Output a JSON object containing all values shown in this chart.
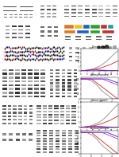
{
  "bg": "#ffffff",
  "panel_bg": "#f5f5f5",
  "band_colors": [
    "#1a1a1a",
    "#333333",
    "#555555",
    "#777777"
  ],
  "domain_colors": [
    "#e07820",
    "#f0c020",
    "#2060c0",
    "#30a030",
    "#c03030",
    "#20a0a0"
  ],
  "survival1": {
    "title": "Tumor growth",
    "lines": [
      {
        "color": "#888888",
        "x": [
          0,
          3,
          6,
          9,
          12,
          15,
          18,
          21,
          24,
          27,
          30
        ],
        "y": [
          0,
          0.05,
          0.15,
          0.35,
          0.65,
          1.0,
          1.5,
          2.2,
          3.0,
          3.8,
          4.5
        ]
      },
      {
        "color": "#cc2222",
        "x": [
          0,
          3,
          6,
          9,
          12,
          15,
          18,
          21,
          24,
          27,
          30
        ],
        "y": [
          0,
          0.04,
          0.1,
          0.2,
          0.35,
          0.55,
          0.8,
          1.1,
          1.4,
          1.8,
          2.2
        ]
      },
      {
        "color": "#2222cc",
        "x": [
          0,
          3,
          6,
          9,
          12,
          15,
          18,
          21,
          24,
          27,
          30
        ],
        "y": [
          0,
          0.03,
          0.08,
          0.12,
          0.12,
          0.08,
          0.04,
          0.02,
          0.01,
          0.01,
          0.01
        ]
      },
      {
        "color": "#cc22cc",
        "x": [
          0,
          3,
          6,
          9,
          12,
          15,
          18,
          21,
          24,
          27,
          30
        ],
        "y": [
          0,
          0.03,
          0.09,
          0.15,
          0.18,
          0.15,
          0.1,
          0.06,
          0.03,
          0.01,
          0.01
        ]
      }
    ]
  },
  "survival2": {
    "title": "Animal survival",
    "lines": [
      {
        "color": "#888888",
        "x": [
          0,
          5,
          10,
          15,
          20,
          25,
          30,
          35
        ],
        "y": [
          100,
          100,
          90,
          70,
          40,
          20,
          0,
          0
        ]
      },
      {
        "color": "#cc2222",
        "x": [
          0,
          5,
          10,
          15,
          20,
          25,
          30,
          35
        ],
        "y": [
          100,
          100,
          100,
          80,
          60,
          40,
          20,
          0
        ]
      },
      {
        "color": "#2222cc",
        "x": [
          0,
          5,
          10,
          15,
          20,
          25,
          30,
          35
        ],
        "y": [
          100,
          100,
          100,
          100,
          100,
          100,
          90,
          80
        ]
      },
      {
        "color": "#cc22cc",
        "x": [
          0,
          5,
          10,
          15,
          20,
          25,
          30,
          35
        ],
        "y": [
          100,
          100,
          100,
          100,
          100,
          90,
          80,
          70
        ]
      }
    ]
  }
}
